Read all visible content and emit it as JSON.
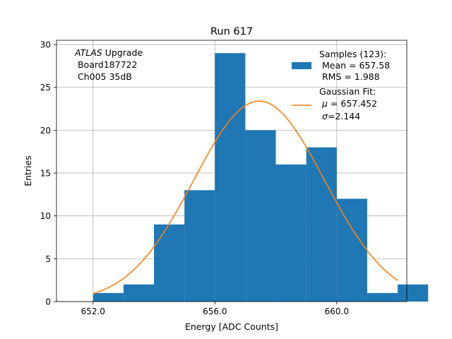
{
  "chart_data": {
    "type": "bar",
    "title": "Run 617",
    "xlabel": "Energy [ADC Counts]",
    "ylabel": "Entries",
    "xlim": [
      650.8,
      662.3
    ],
    "ylim": [
      0,
      30.5
    ],
    "xticks": [
      652.0,
      656.0,
      660.0
    ],
    "xtick_labels": [
      "652.0",
      "656.0",
      "660.0"
    ],
    "yticks": [
      0,
      5,
      10,
      15,
      20,
      25,
      30
    ],
    "ytick_labels": [
      "0",
      "5",
      "10",
      "15",
      "20",
      "25",
      "30"
    ],
    "grid": true,
    "bin_edges": [
      652.0,
      653.0,
      654.0,
      655.0,
      656.0,
      657.0,
      658.0,
      659.0,
      660.0,
      661.0,
      662.0,
      663.0
    ],
    "bin_starts": [
      652.0,
      653.0,
      654.0,
      655.0,
      656.0,
      657.0,
      658.0,
      659.0,
      660.0,
      661.0,
      662.0
    ],
    "bin_width": 1.0,
    "values": [
      1,
      2,
      9,
      13,
      29,
      20,
      16,
      18,
      12,
      1,
      2
    ],
    "bar_color": "#1f77b4",
    "fit": {
      "name": "Gaussian Fit",
      "mu": 657.452,
      "sigma": 2.144,
      "x_range": [
        652.0,
        662.0
      ],
      "amplitude": 23.4,
      "color": "#ff7f0e"
    },
    "annotation": {
      "italic": "ATLAS",
      "rest": " Upgrade",
      "line2": " Board187722",
      "line3": " Ch005 35dB"
    },
    "legend": {
      "position": "top-right",
      "samples_line1": "Samples (123):",
      "samples_line2": " Mean = 657.58",
      "samples_line3": " RMS = 1.988",
      "fit_line1": "Gaussian Fit:",
      "fit_mu_symbol": "μ",
      "fit_mu_text": " = 657.452",
      "fit_sigma_symbol": "σ",
      "fit_sigma_text": "=2.144"
    }
  }
}
